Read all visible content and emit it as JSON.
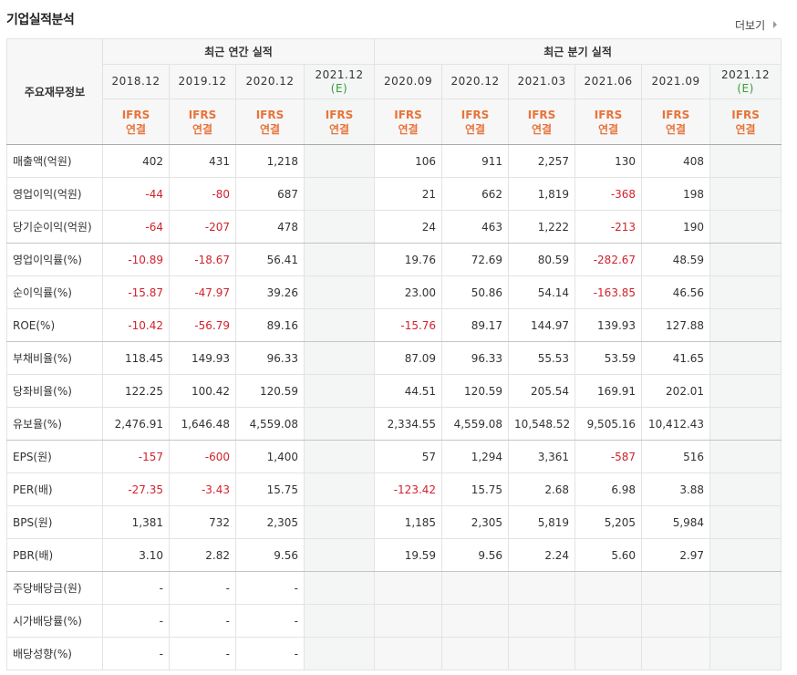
{
  "header": {
    "title": "기업실적분석",
    "more": "더보기"
  },
  "table": {
    "corner": "주요재무정보",
    "groups": [
      "최근 연간 실적",
      "최근 분기 실적"
    ],
    "columns": [
      {
        "period": "2018.12",
        "standard": "IFRS",
        "basis": "연결"
      },
      {
        "period": "2019.12",
        "standard": "IFRS",
        "basis": "연결"
      },
      {
        "period": "2020.12",
        "standard": "IFRS",
        "basis": "연결"
      },
      {
        "period": "2021.12",
        "note": "(E)",
        "standard": "IFRS",
        "basis": "연결"
      },
      {
        "period": "2020.09",
        "standard": "IFRS",
        "basis": "연결"
      },
      {
        "period": "2020.12",
        "standard": "IFRS",
        "basis": "연결"
      },
      {
        "period": "2021.03",
        "standard": "IFRS",
        "basis": "연결"
      },
      {
        "period": "2021.06",
        "standard": "IFRS",
        "basis": "연결"
      },
      {
        "period": "2021.09",
        "standard": "IFRS",
        "basis": "연결"
      },
      {
        "period": "2021.12",
        "note": "(E)",
        "standard": "IFRS",
        "basis": "연결"
      }
    ],
    "rows": [
      {
        "label": "매출액(억원)",
        "values": [
          "402",
          "431",
          "1,218",
          null,
          "106",
          "911",
          "2,257",
          "130",
          "408",
          null
        ]
      },
      {
        "label": "영업이익(억원)",
        "values": [
          "-44",
          "-80",
          "687",
          null,
          "21",
          "662",
          "1,819",
          "-368",
          "198",
          null
        ]
      },
      {
        "label": "당기순이익(억원)",
        "values": [
          "-64",
          "-207",
          "478",
          null,
          "24",
          "463",
          "1,222",
          "-213",
          "190",
          null
        ]
      },
      {
        "label": "영업이익률(%)",
        "values": [
          "-10.89",
          "-18.67",
          "56.41",
          null,
          "19.76",
          "72.69",
          "80.59",
          "-282.67",
          "48.59",
          null
        ]
      },
      {
        "label": "순이익률(%)",
        "values": [
          "-15.87",
          "-47.97",
          "39.26",
          null,
          "23.00",
          "50.86",
          "54.14",
          "-163.85",
          "46.56",
          null
        ]
      },
      {
        "label": "ROE(%)",
        "values": [
          "-10.42",
          "-56.79",
          "89.16",
          null,
          "-15.76",
          "89.17",
          "144.97",
          "139.93",
          "127.88",
          null
        ]
      },
      {
        "label": "부채비율(%)",
        "values": [
          "118.45",
          "149.93",
          "96.33",
          null,
          "87.09",
          "96.33",
          "55.53",
          "53.59",
          "41.65",
          null
        ]
      },
      {
        "label": "당좌비율(%)",
        "values": [
          "122.25",
          "100.42",
          "120.59",
          null,
          "44.51",
          "120.59",
          "205.54",
          "169.91",
          "202.01",
          null
        ]
      },
      {
        "label": "유보율(%)",
        "values": [
          "2,476.91",
          "1,646.48",
          "4,559.08",
          null,
          "2,334.55",
          "4,559.08",
          "10,548.52",
          "9,505.16",
          "10,412.43",
          null
        ]
      },
      {
        "label": "EPS(원)",
        "values": [
          "-157",
          "-600",
          "1,400",
          null,
          "57",
          "1,294",
          "3,361",
          "-587",
          "516",
          null
        ]
      },
      {
        "label": "PER(배)",
        "values": [
          "-27.35",
          "-3.43",
          "15.75",
          null,
          "-123.42",
          "15.75",
          "2.68",
          "6.98",
          "3.88",
          null
        ]
      },
      {
        "label": "BPS(원)",
        "values": [
          "1,381",
          "732",
          "2,305",
          null,
          "1,185",
          "2,305",
          "5,819",
          "5,205",
          "5,984",
          null
        ]
      },
      {
        "label": "PBR(배)",
        "values": [
          "3.10",
          "2.82",
          "9.56",
          null,
          "19.59",
          "9.56",
          "2.24",
          "5.60",
          "2.97",
          null
        ]
      },
      {
        "label": "주당배당금(원)",
        "values": [
          "-",
          "-",
          "-",
          null,
          null,
          null,
          null,
          null,
          null,
          null
        ]
      },
      {
        "label": "시가배당률(%)",
        "values": [
          "-",
          "-",
          "-",
          null,
          null,
          null,
          null,
          null,
          null,
          null
        ]
      },
      {
        "label": "배당성향(%)",
        "values": [
          "-",
          "-",
          "-",
          null,
          null,
          null,
          null,
          null,
          null,
          null
        ]
      }
    ]
  }
}
